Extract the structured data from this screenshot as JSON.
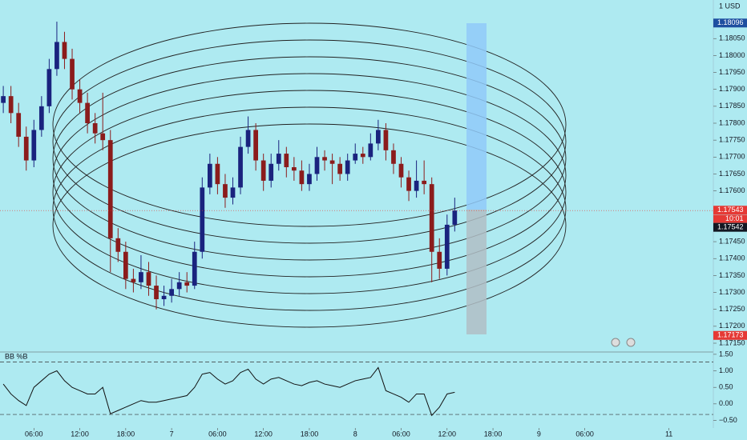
{
  "chart_data": [
    {
      "type": "candlestick",
      "currency_label": "1 USD",
      "countdown": "10:01",
      "up_color": "#1a237e",
      "down_color": "#8b1c1c",
      "x": [
        2,
        3,
        4,
        5,
        6,
        7,
        8,
        9,
        10,
        11,
        12,
        13,
        14,
        15,
        16,
        17,
        18,
        19,
        20,
        21,
        22,
        23,
        24,
        25,
        26,
        27,
        28,
        29,
        30,
        31,
        32,
        33,
        34,
        35,
        36,
        37,
        38,
        39,
        40,
        41,
        42,
        43,
        44,
        45,
        46,
        47,
        48,
        49,
        50,
        51,
        52,
        53,
        54,
        55,
        56,
        57,
        58,
        59,
        60,
        61
      ],
      "open": [
        1.1786,
        1.1788,
        1.1783,
        1.1776,
        1.1769,
        1.1778,
        1.1785,
        1.1796,
        1.1804,
        1.1799,
        1.179,
        1.1786,
        1.178,
        1.1777,
        1.1775,
        1.1746,
        1.1742,
        1.1734,
        1.1733,
        1.1736,
        1.1732,
        1.1728,
        1.1729,
        1.1731,
        1.1733,
        1.1732,
        1.1742,
        1.1761,
        1.1768,
        1.1762,
        1.1758,
        1.1761,
        1.1773,
        1.1778,
        1.1769,
        1.1763,
        1.1768,
        1.1771,
        1.1767,
        1.1766,
        1.1762,
        1.1765,
        1.177,
        1.1769,
        1.1768,
        1.1765,
        1.1769,
        1.1771,
        1.177,
        1.1774,
        1.1778,
        1.1772,
        1.1768,
        1.1764,
        1.176,
        1.1763,
        1.1762,
        1.1742,
        1.1737,
        1.175
      ],
      "high": [
        1.1791,
        1.1791,
        1.1786,
        1.1779,
        1.1781,
        1.1788,
        1.1799,
        1.181,
        1.1807,
        1.1802,
        1.1793,
        1.1789,
        1.1783,
        1.1789,
        1.1778,
        1.1749,
        1.1745,
        1.1737,
        1.1741,
        1.1739,
        1.1735,
        1.1732,
        1.1734,
        1.1736,
        1.1736,
        1.1745,
        1.1764,
        1.1771,
        1.177,
        1.1765,
        1.1764,
        1.1776,
        1.1782,
        1.178,
        1.1771,
        1.1771,
        1.1775,
        1.1773,
        1.177,
        1.1769,
        1.1768,
        1.1773,
        1.1772,
        1.1771,
        1.177,
        1.1771,
        1.1774,
        1.1773,
        1.1777,
        1.1781,
        1.178,
        1.1774,
        1.177,
        1.1766,
        1.1769,
        1.1769,
        1.1764,
        1.1746,
        1.1753,
        1.1758
      ],
      "low": [
        1.1783,
        1.178,
        1.1773,
        1.1766,
        1.1767,
        1.1776,
        1.1783,
        1.1794,
        1.1796,
        1.1787,
        1.1783,
        1.1777,
        1.1774,
        1.1772,
        1.1736,
        1.1739,
        1.1731,
        1.173,
        1.1731,
        1.1729,
        1.1725,
        1.1726,
        1.1727,
        1.1729,
        1.173,
        1.1731,
        1.174,
        1.1759,
        1.1759,
        1.1755,
        1.1756,
        1.1759,
        1.1771,
        1.1766,
        1.176,
        1.1761,
        1.1766,
        1.1764,
        1.1763,
        1.176,
        1.176,
        1.1763,
        1.1766,
        1.1762,
        1.1763,
        1.1763,
        1.1768,
        1.1768,
        1.1769,
        1.1772,
        1.1769,
        1.1765,
        1.1761,
        1.1757,
        1.1758,
        1.1759,
        1.1733,
        1.1734,
        1.1735,
        1.1748
      ],
      "close": [
        1.1788,
        1.1783,
        1.1776,
        1.1769,
        1.1778,
        1.1785,
        1.1796,
        1.1804,
        1.1799,
        1.179,
        1.1786,
        1.178,
        1.1777,
        1.1775,
        1.1746,
        1.1742,
        1.1734,
        1.1733,
        1.1736,
        1.1732,
        1.1728,
        1.1729,
        1.1731,
        1.1733,
        1.1732,
        1.1742,
        1.1761,
        1.1768,
        1.1762,
        1.1758,
        1.1761,
        1.1773,
        1.1778,
        1.1769,
        1.1763,
        1.1768,
        1.1771,
        1.1767,
        1.1766,
        1.1762,
        1.1765,
        1.177,
        1.1769,
        1.1768,
        1.1765,
        1.1769,
        1.1771,
        1.177,
        1.1774,
        1.1778,
        1.1772,
        1.1768,
        1.1764,
        1.176,
        1.1763,
        1.1762,
        1.1742,
        1.1737,
        1.175,
        1.17542
      ],
      "xlim": [
        1.57,
        94.8
      ],
      "ylim": [
        1.17124,
        1.18164
      ],
      "yticks": [
        {
          "value": 1.1805,
          "label": "1.18050"
        },
        {
          "value": 1.18,
          "label": "1.18000"
        },
        {
          "value": 1.1795,
          "label": "1.17950"
        },
        {
          "value": 1.179,
          "label": "1.17900"
        },
        {
          "value": 1.1785,
          "label": "1.17850"
        },
        {
          "value": 1.178,
          "label": "1.17800"
        },
        {
          "value": 1.1775,
          "label": "1.17750"
        },
        {
          "value": 1.177,
          "label": "1.17700"
        },
        {
          "value": 1.1765,
          "label": "1.17650"
        },
        {
          "value": 1.176,
          "label": "1.17600"
        },
        {
          "value": 1.1745,
          "label": "1.17450"
        },
        {
          "value": 1.174,
          "label": "1.17400"
        },
        {
          "value": 1.1735,
          "label": "1.17350"
        },
        {
          "value": 1.173,
          "label": "1.17300"
        },
        {
          "value": 1.1725,
          "label": "1.17250"
        },
        {
          "value": 1.172,
          "label": "1.17200"
        },
        {
          "value": 1.1715,
          "label": "1.17150"
        }
      ],
      "price_tags": [
        {
          "value": 1.18096,
          "label": "1.18096",
          "color": "#1e4fa0"
        },
        {
          "value": 1.17543,
          "label": "1.17543",
          "color": "#e53935"
        },
        {
          "value": 1.17173,
          "label": "1.17173",
          "color": "#e53935"
        }
      ],
      "last_price": {
        "value": 1.17542,
        "label": "1.17542",
        "color": "#131722"
      },
      "xticks": [
        {
          "value": 6,
          "label": "06:00"
        },
        {
          "value": 12,
          "label": "12:00"
        },
        {
          "value": 18,
          "label": "18:00"
        },
        {
          "value": 24,
          "label": "7"
        },
        {
          "value": 30,
          "label": "06:00"
        },
        {
          "value": 36,
          "label": "12:00"
        },
        {
          "value": 42,
          "label": "18:00"
        },
        {
          "value": 48,
          "label": "8"
        },
        {
          "value": 54,
          "label": "06:00"
        },
        {
          "value": 60,
          "label": "12:00"
        },
        {
          "value": 66,
          "label": "18:00"
        },
        {
          "value": 72,
          "label": "9"
        },
        {
          "value": 78,
          "label": "06:00"
        },
        {
          "value": 89,
          "label": "11"
        }
      ]
    },
    {
      "type": "line",
      "title": "BB %B",
      "color": "#111111",
      "values": [
        0.6,
        0.3,
        0.1,
        -0.05,
        0.5,
        0.7,
        0.9,
        1.0,
        0.7,
        0.5,
        0.4,
        0.3,
        0.3,
        0.5,
        -0.3,
        -0.2,
        -0.1,
        0.0,
        0.1,
        0.05,
        0.05,
        0.1,
        0.15,
        0.2,
        0.25,
        0.5,
        0.9,
        0.95,
        0.75,
        0.6,
        0.7,
        0.95,
        1.05,
        0.75,
        0.6,
        0.75,
        0.8,
        0.7,
        0.6,
        0.55,
        0.65,
        0.7,
        0.6,
        0.55,
        0.5,
        0.6,
        0.7,
        0.75,
        0.8,
        1.1,
        0.4,
        0.3,
        0.2,
        0.05,
        0.3,
        0.3,
        -0.35,
        -0.1,
        0.3,
        0.35
      ],
      "ylim": [
        -0.73,
        1.57
      ],
      "levels": [
        1.27,
        -0.32
      ],
      "yticks": [
        {
          "value": 1.5,
          "label": "1.50"
        },
        {
          "value": 1,
          "label": "1.00"
        },
        {
          "value": 0.5,
          "label": "0.50"
        },
        {
          "value": 0,
          "label": "0.00"
        },
        {
          "value": -0.5,
          "label": "−0.50"
        }
      ]
    }
  ]
}
